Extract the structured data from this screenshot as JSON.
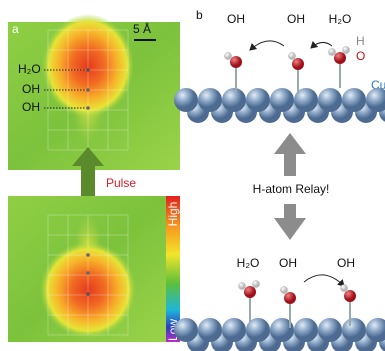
{
  "panel_a": {
    "label": "a",
    "scale_bar": "5 Å",
    "top_labels": [
      "H₂O",
      "OH",
      "OH"
    ],
    "pulse": "Pulse",
    "colorbar": {
      "high": "High",
      "low": "Low"
    }
  },
  "panel_b": {
    "label": "b",
    "top_labels": [
      "OH",
      "OH",
      "H₂O"
    ],
    "legend": {
      "h": "H",
      "o": "O",
      "cu": "Cu"
    },
    "relay": "H-atom Relay!",
    "bottom_labels": [
      "H₂O",
      "OH",
      "OH"
    ]
  }
}
